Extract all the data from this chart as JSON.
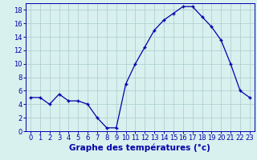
{
  "hours": [
    0,
    1,
    2,
    3,
    4,
    5,
    6,
    7,
    8,
    9,
    10,
    11,
    12,
    13,
    14,
    15,
    16,
    17,
    18,
    19,
    20,
    21,
    22,
    23
  ],
  "temps": [
    5,
    5,
    4,
    5.5,
    4.5,
    4.5,
    4,
    2,
    0.5,
    0.5,
    7,
    10,
    12.5,
    15,
    16.5,
    17.5,
    18.5,
    18.5,
    17,
    15.5,
    13.5,
    10,
    6,
    5
  ],
  "line_color": "#0000aa",
  "marker": "+",
  "bg_color": "#d8f0ee",
  "grid_color": "#aacccc",
  "xlabel": "Graphe des températures (°c)",
  "xlabel_color": "#0000aa",
  "xlabel_fontsize": 7.5,
  "tick_color": "#0000aa",
  "tick_fontsize": 6,
  "xlim": [
    -0.5,
    23.5
  ],
  "ylim": [
    0,
    19
  ],
  "yticks": [
    0,
    2,
    4,
    6,
    8,
    10,
    12,
    14,
    16,
    18
  ],
  "xticks": [
    0,
    1,
    2,
    3,
    4,
    5,
    6,
    7,
    8,
    9,
    10,
    11,
    12,
    13,
    14,
    15,
    16,
    17,
    18,
    19,
    20,
    21,
    22,
    23
  ]
}
